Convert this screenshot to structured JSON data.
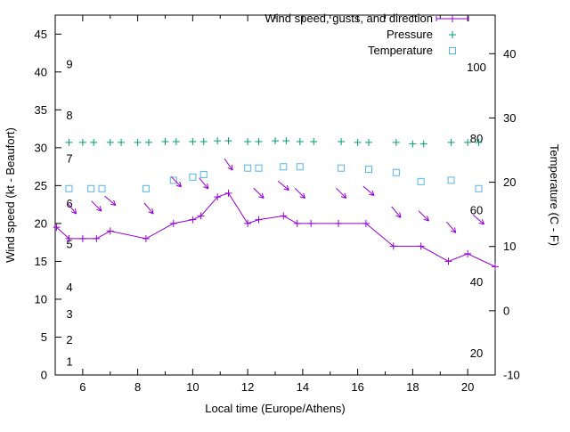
{
  "figure": {
    "background": "#ffffff",
    "border_color": "#000000"
  },
  "chart_data": {
    "type": "line",
    "title": "",
    "legend_position": "top-right-inside",
    "grid": false,
    "legend": [
      {
        "label": "Wind speed, gusts, and direction",
        "series": "wind",
        "color": "#9400d3",
        "marker": "line-plus"
      },
      {
        "label": "Pressure",
        "series": "pressure",
        "color": "#009e73",
        "marker": "plus"
      },
      {
        "label": "Temperature",
        "series": "temperature",
        "color": "#56b4e9",
        "marker": "square"
      }
    ],
    "x_axis": {
      "label": "Local time (Europe/Athens)",
      "min": 5,
      "max": 21,
      "major_ticks": [
        6,
        8,
        10,
        12,
        14,
        16,
        18,
        20
      ],
      "minor_tick_step": 1
    },
    "y_left": {
      "label": "Wind speed (kt - Beaufort)",
      "min": 0,
      "max": 47.5,
      "major_ticks": [
        0,
        5,
        10,
        15,
        20,
        25,
        30,
        35,
        40,
        45
      ],
      "beaufort_labels": [
        {
          "text": "1",
          "v": 1.7
        },
        {
          "text": "2",
          "v": 4.6
        },
        {
          "text": "3",
          "v": 8.0
        },
        {
          "text": "4",
          "v": 11.5
        },
        {
          "text": "5",
          "v": 17.2
        },
        {
          "text": "6",
          "v": 22.6
        },
        {
          "text": "7",
          "v": 28.5
        },
        {
          "text": "8",
          "v": 34.2
        },
        {
          "text": "9",
          "v": 41.0
        }
      ]
    },
    "y_right": {
      "label": "Temperature (C - F)",
      "min": -10,
      "max": 46,
      "major_ticks": [
        -10,
        0,
        10,
        20,
        30,
        40
      ],
      "fahrenheit_labels": [
        {
          "text": "20",
          "c": -6.7
        },
        {
          "text": "40",
          "c": 4.4
        },
        {
          "text": "60",
          "c": 15.6
        },
        {
          "text": "80",
          "c": 26.7
        },
        {
          "text": "100",
          "c": 37.8
        }
      ]
    },
    "series": {
      "wind": {
        "name": "Wind speed (kt)",
        "color": "#9400d3",
        "axis": "left",
        "x": [
          5.05,
          5.5,
          6.0,
          6.5,
          7.0,
          8.3,
          9.3,
          10.0,
          10.3,
          10.9,
          11.3,
          12.0,
          12.4,
          13.3,
          13.8,
          14.3,
          15.3,
          16.3,
          17.3,
          18.3,
          19.3,
          20.0,
          21.0
        ],
        "y": [
          19.5,
          18,
          18,
          18,
          19,
          18,
          20,
          20.5,
          21,
          23.5,
          24,
          20,
          20.5,
          21,
          20,
          20,
          20,
          20,
          17,
          17,
          15,
          16,
          14.3
        ]
      },
      "pressure": {
        "name": "Pressure",
        "color": "#009e73",
        "axis": "left",
        "x": [
          5.5,
          6.0,
          6.4,
          7.0,
          7.4,
          8.0,
          8.4,
          9.0,
          9.4,
          10.0,
          10.4,
          10.9,
          11.3,
          12.0,
          12.4,
          13.0,
          13.4,
          13.9,
          14.4,
          15.4,
          16.0,
          16.4,
          17.4,
          18.0,
          18.4,
          19.4,
          20.0,
          20.4
        ],
        "y": [
          30.7,
          30.7,
          30.7,
          30.7,
          30.7,
          30.7,
          30.7,
          30.8,
          30.8,
          30.8,
          30.8,
          30.9,
          30.9,
          30.8,
          30.8,
          30.9,
          30.9,
          30.8,
          30.8,
          30.8,
          30.7,
          30.7,
          30.7,
          30.5,
          30.5,
          30.7,
          30.7,
          30.7
        ]
      },
      "temperature": {
        "name": "Temperature (C)",
        "color": "#56b4e9",
        "axis": "right",
        "x": [
          5.5,
          6.3,
          6.7,
          8.3,
          9.3,
          10.0,
          10.4,
          12.0,
          12.4,
          13.3,
          13.9,
          15.4,
          16.4,
          17.4,
          18.3,
          19.4,
          20.4
        ],
        "c": [
          19.0,
          19.0,
          19.0,
          19.0,
          20.3,
          20.8,
          21.2,
          22.2,
          22.2,
          22.4,
          22.4,
          22.2,
          22.0,
          21.5,
          20.1,
          20.3,
          19.0
        ]
      },
      "gust_arrows": {
        "name": "Wind gusts and direction",
        "color": "#9400d3",
        "axis": "left",
        "points": [
          {
            "x": 5.6,
            "y": 22.0,
            "angle": 50
          },
          {
            "x": 6.5,
            "y": 22.3,
            "angle": 45
          },
          {
            "x": 7.0,
            "y": 23.0,
            "angle": 40
          },
          {
            "x": 8.4,
            "y": 22.0,
            "angle": 50
          },
          {
            "x": 9.4,
            "y": 25.5,
            "angle": 45
          },
          {
            "x": 10.4,
            "y": 25.3,
            "angle": 50
          },
          {
            "x": 11.3,
            "y": 27.8,
            "angle": 55
          },
          {
            "x": 12.4,
            "y": 24.0,
            "angle": 45
          },
          {
            "x": 13.3,
            "y": 25.0,
            "angle": 40
          },
          {
            "x": 13.9,
            "y": 24.0,
            "angle": 45
          },
          {
            "x": 15.4,
            "y": 24.0,
            "angle": 45
          },
          {
            "x": 16.4,
            "y": 24.3,
            "angle": 40
          },
          {
            "x": 17.4,
            "y": 21.5,
            "angle": 50
          },
          {
            "x": 18.4,
            "y": 21.0,
            "angle": 45
          },
          {
            "x": 19.4,
            "y": 19.5,
            "angle": 50
          },
          {
            "x": 20.4,
            "y": 20.5,
            "angle": 40
          }
        ]
      }
    }
  }
}
